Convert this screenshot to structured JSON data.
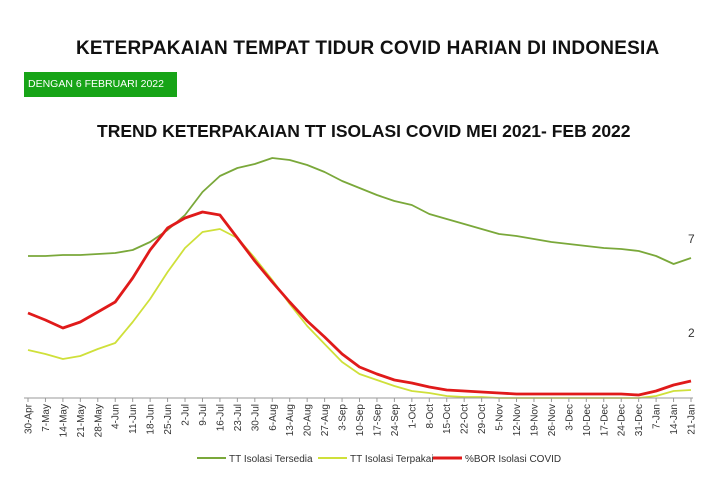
{
  "header": {
    "title": "KETERPAKAIAN TEMPAT TIDUR COVID HARIAN DI INDONESIA",
    "date_badge": "DENGAN  6 FEBRUARI 2022"
  },
  "colors": {
    "tersedia": "#7aa83a",
    "terpakai": "#cfe03a",
    "bor": "#e01a1a",
    "badge": "#17a417"
  },
  "chart_data": {
    "type": "line",
    "title": "TREND KETERPAKAIAN TT ISOLASI COVID MEI 2021- FEB 2022",
    "xlabel": "",
    "ylabel": "",
    "grid": false,
    "legend_position": "bottom",
    "categories": [
      "30-Apr",
      "7-May",
      "14-May",
      "21-May",
      "28-May",
      "4-Jun",
      "11-Jun",
      "18-Jun",
      "25-Jun",
      "2-Jul",
      "9-Jul",
      "16-Jul",
      "23-Jul",
      "30-Jul",
      "6-Aug",
      "13-Aug",
      "20-Aug",
      "27-Aug",
      "3-Sep",
      "10-Sep",
      "17-Sep",
      "24-Sep",
      "1-Oct",
      "8-Oct",
      "15-Oct",
      "22-Oct",
      "29-Oct",
      "5-Nov",
      "12-Nov",
      "19-Nov",
      "26-Nov",
      "3-Dec",
      "10-Dec",
      "17-Dec",
      "24-Dec",
      "31-Dec",
      "7-Jan",
      "14-Jan",
      "21-Jan"
    ],
    "right_axis_partial_labels": [
      "7",
      "2"
    ],
    "series": [
      {
        "name": "TT Isolasi Tersedia",
        "values": [
          256,
          256,
          255,
          255,
          254,
          253,
          250,
          242,
          230,
          215,
          192,
          176,
          168,
          164,
          158,
          160,
          165,
          172,
          181,
          188,
          195,
          201,
          205,
          214,
          219,
          224,
          229,
          234,
          236,
          239,
          242,
          244,
          246,
          248,
          249,
          251,
          256,
          264,
          258
        ]
      },
      {
        "name": "TT Isolasi Terpakai",
        "values": [
          350,
          354,
          359,
          356,
          349,
          343,
          322,
          299,
          272,
          248,
          232,
          229,
          238,
          258,
          280,
          304,
          326,
          344,
          362,
          374,
          380,
          386,
          391,
          393,
          396,
          397,
          397,
          398,
          398,
          398,
          398,
          398,
          398,
          398,
          398,
          398,
          396,
          391,
          390
        ]
      },
      {
        "name": "%BOR Isolasi COVID",
        "values": [
          313,
          320,
          328,
          322,
          312,
          302,
          278,
          250,
          228,
          218,
          212,
          215,
          238,
          261,
          282,
          302,
          321,
          337,
          354,
          367,
          374,
          380,
          383,
          387,
          390,
          391,
          392,
          393,
          394,
          394,
          394,
          394,
          394,
          394,
          394,
          395,
          391,
          385,
          381
        ]
      }
    ]
  }
}
